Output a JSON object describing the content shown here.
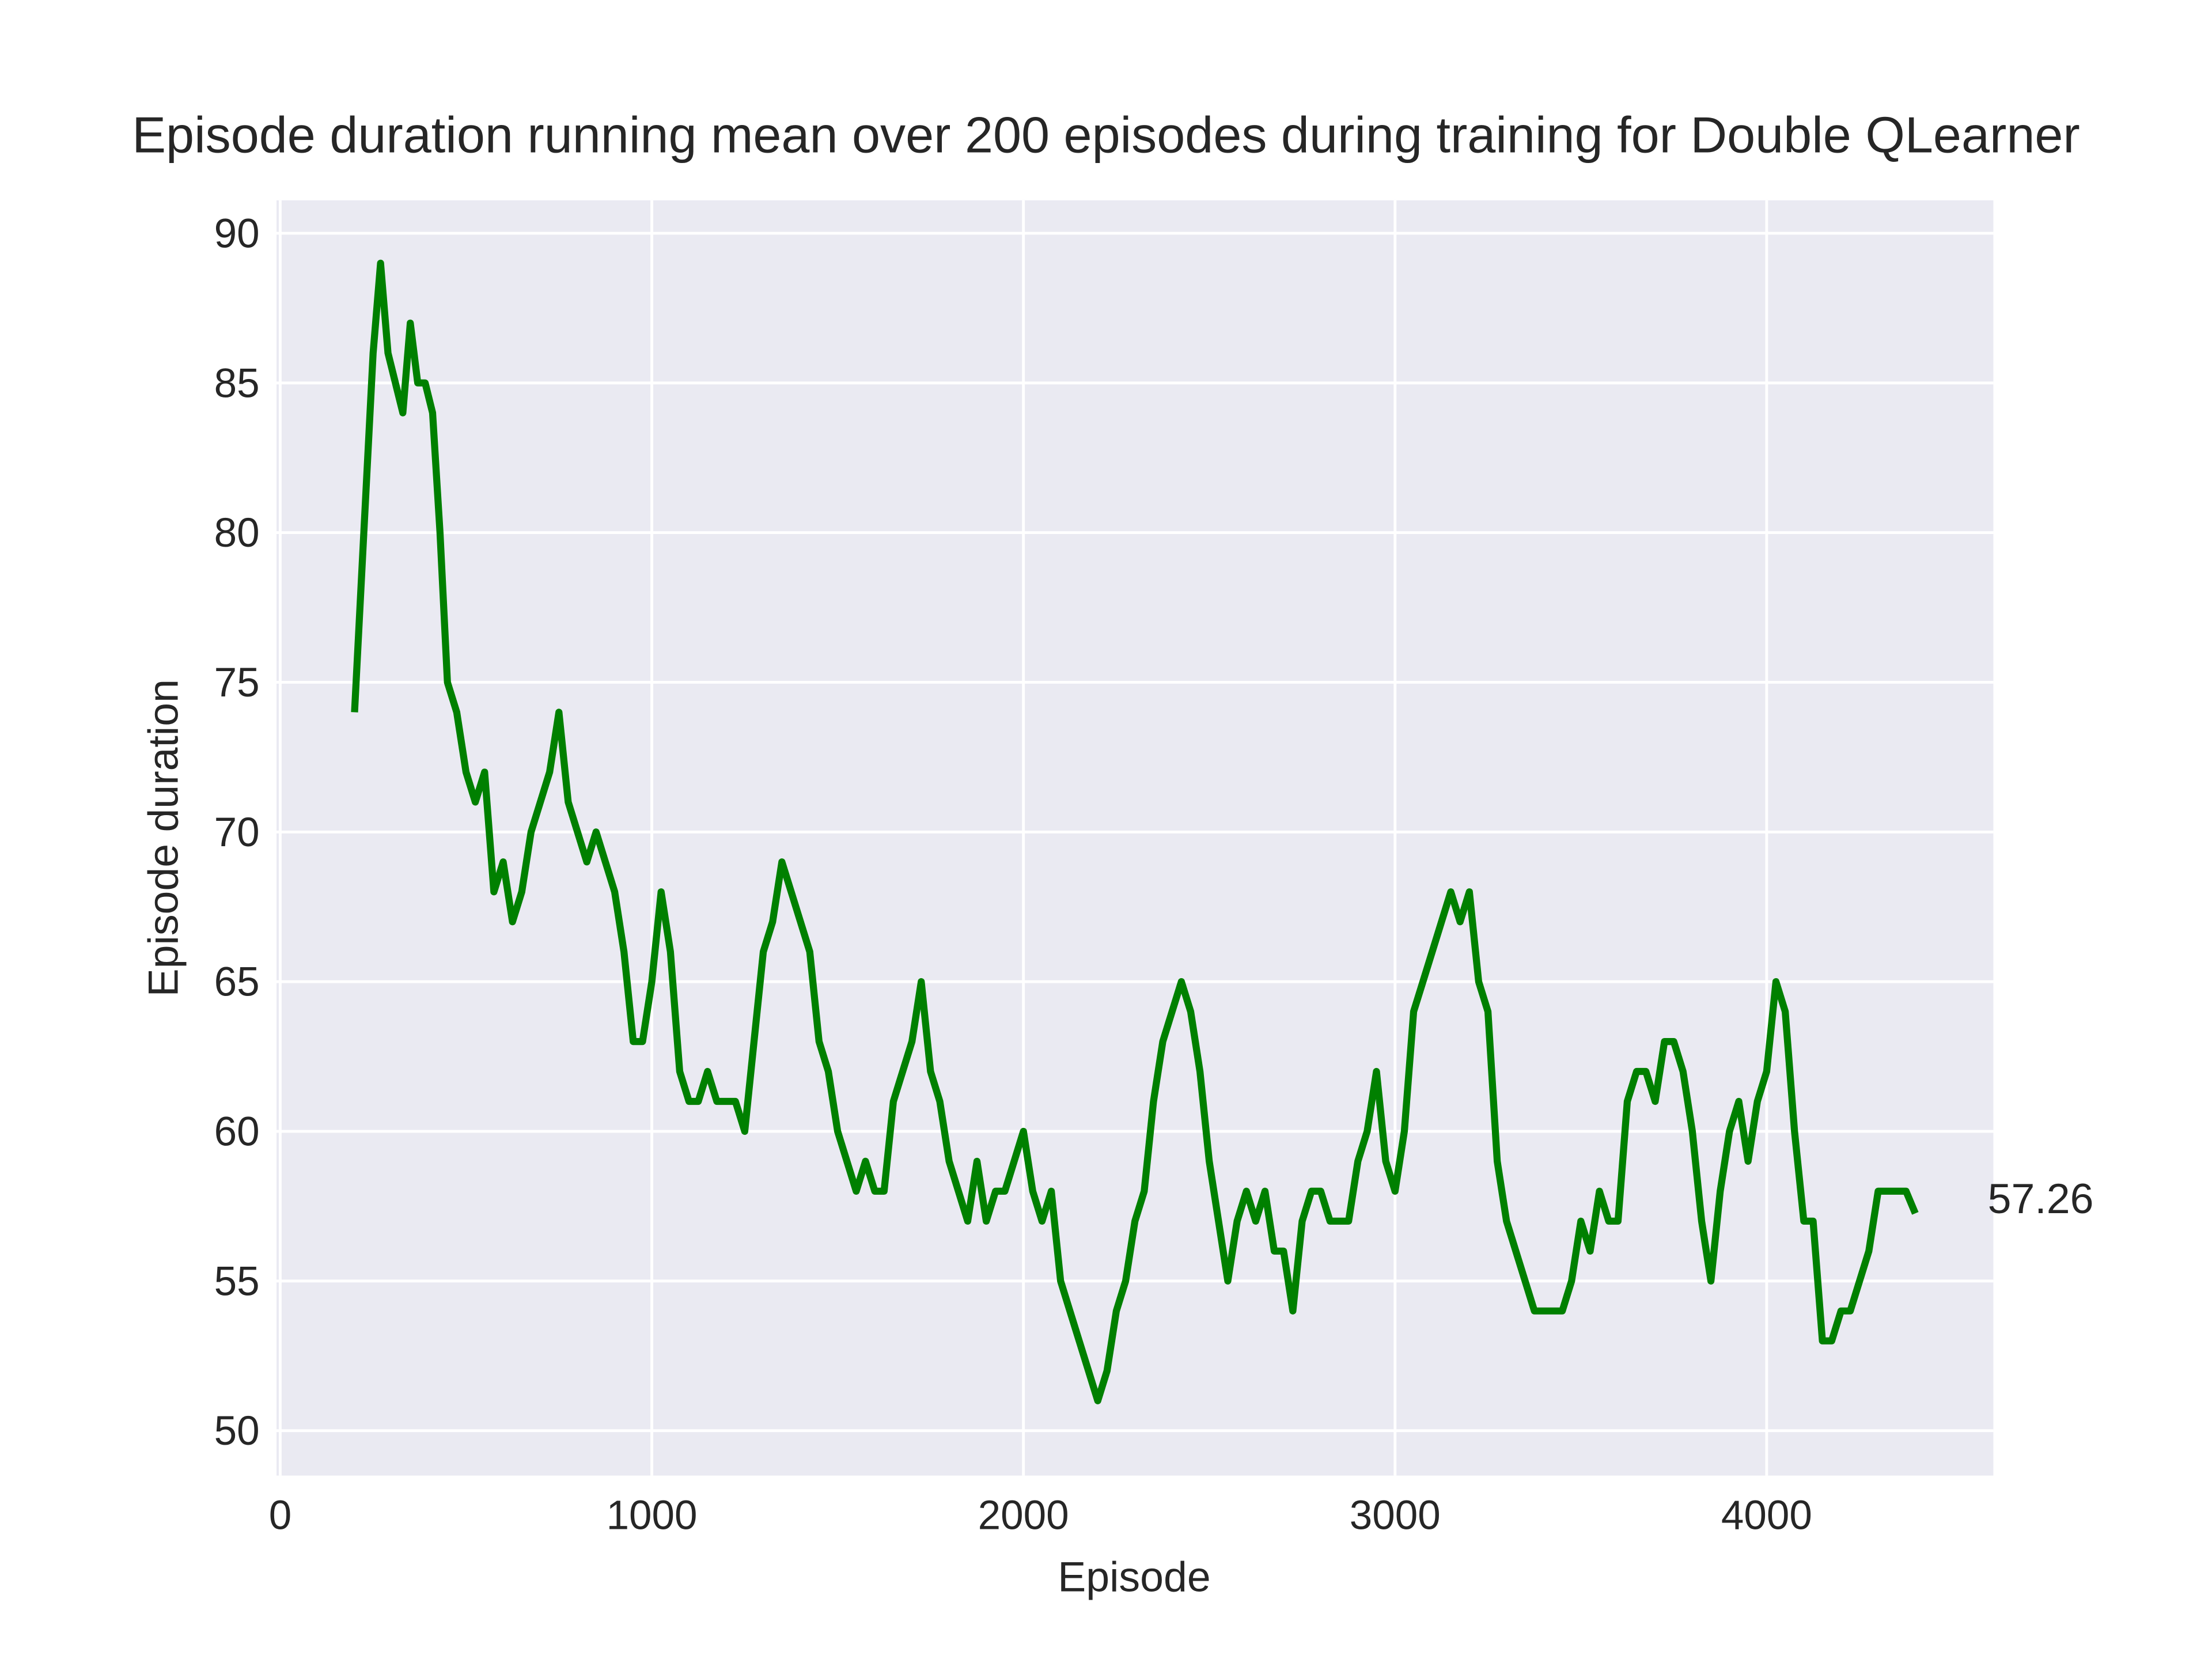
{
  "chart_data": {
    "type": "line",
    "title": "Episode duration running mean over 200 episodes during training for Double QLearner",
    "xlabel": "Episode",
    "ylabel": "Episode duration",
    "xlim": [
      -10,
      4610
    ],
    "ylim": [
      48.5,
      91.1
    ],
    "xticks": [
      0,
      1000,
      2000,
      3000,
      4000
    ],
    "yticks": [
      50,
      55,
      60,
      65,
      70,
      75,
      80,
      85,
      90
    ],
    "grid": true,
    "background": "#eaeaf2",
    "annotation": "57.26",
    "series": [
      {
        "color": "#008000",
        "x": [
          200,
          225,
          250,
          270,
          290,
          310,
          330,
          350,
          370,
          390,
          410,
          430,
          450,
          475,
          500,
          525,
          550,
          575,
          600,
          625,
          650,
          675,
          700,
          725,
          750,
          775,
          800,
          825,
          850,
          875,
          900,
          925,
          950,
          975,
          1000,
          1025,
          1050,
          1075,
          1100,
          1125,
          1150,
          1175,
          1200,
          1225,
          1250,
          1275,
          1300,
          1325,
          1350,
          1375,
          1400,
          1425,
          1450,
          1475,
          1500,
          1525,
          1550,
          1575,
          1600,
          1625,
          1650,
          1675,
          1700,
          1725,
          1750,
          1775,
          1800,
          1825,
          1850,
          1875,
          1900,
          1925,
          1950,
          1975,
          2000,
          2025,
          2050,
          2075,
          2100,
          2125,
          2150,
          2175,
          2200,
          2225,
          2250,
          2275,
          2300,
          2325,
          2350,
          2375,
          2400,
          2425,
          2450,
          2475,
          2500,
          2525,
          2550,
          2575,
          2600,
          2625,
          2650,
          2675,
          2700,
          2725,
          2750,
          2775,
          2800,
          2825,
          2850,
          2875,
          2900,
          2925,
          2950,
          2975,
          3000,
          3025,
          3050,
          3075,
          3100,
          3125,
          3150,
          3175,
          3200,
          3225,
          3250,
          3275,
          3300,
          3325,
          3350,
          3375,
          3400,
          3425,
          3450,
          3475,
          3500,
          3525,
          3550,
          3575,
          3600,
          3625,
          3650,
          3675,
          3700,
          3725,
          3750,
          3775,
          3800,
          3825,
          3850,
          3875,
          3900,
          3925,
          3950,
          3975,
          4000,
          4025,
          4050,
          4075,
          4100,
          4125,
          4150,
          4175,
          4200,
          4225,
          4250,
          4275,
          4300,
          4325,
          4350,
          4375,
          4400
        ],
        "values": [
          74,
          80,
          86,
          89,
          86,
          85,
          84,
          87,
          85,
          85,
          84,
          80,
          75,
          74,
          72,
          71,
          72,
          68,
          69,
          67,
          68,
          70,
          71,
          72,
          74,
          71,
          70,
          69,
          70,
          69,
          68,
          66,
          63,
          63,
          65,
          68,
          66,
          62,
          61,
          61,
          62,
          61,
          61,
          61,
          60,
          63,
          66,
          67,
          69,
          68,
          67,
          66,
          63,
          62,
          60,
          59,
          58,
          59,
          58,
          58,
          61,
          62,
          63,
          65,
          62,
          61,
          59,
          58,
          57,
          59,
          57,
          58,
          58,
          59,
          60,
          58,
          57,
          58,
          55,
          54,
          53,
          52,
          51,
          52,
          54,
          55,
          57,
          58,
          61,
          63,
          64,
          65,
          64,
          62,
          59,
          57,
          55,
          57,
          58,
          57,
          58,
          56,
          56,
          54,
          57,
          58,
          58,
          57,
          57,
          57,
          59,
          60,
          62,
          59,
          58,
          60,
          64,
          65,
          66,
          67,
          68,
          67,
          68,
          65,
          64,
          59,
          57,
          56,
          55,
          54,
          54,
          54,
          54,
          55,
          57,
          56,
          58,
          57,
          57,
          61,
          62,
          62,
          61,
          63,
          63,
          62,
          60,
          57,
          55,
          58,
          60,
          61,
          59,
          61,
          62,
          65,
          64,
          60,
          57,
          57,
          53,
          53,
          54,
          54,
          55,
          56,
          58,
          58,
          58,
          58,
          57.26
        ]
      }
    ]
  }
}
